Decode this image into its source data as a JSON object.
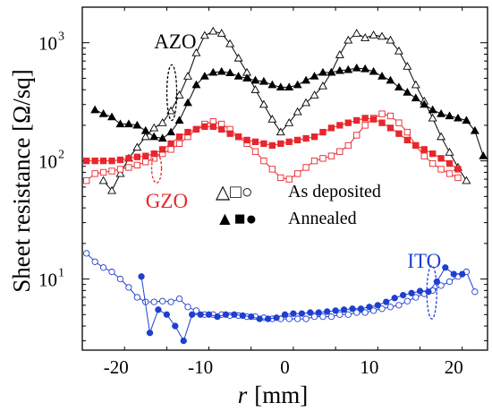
{
  "chart_data": {
    "type": "scatter",
    "xlabel_var": "r",
    "xlabel_unit": "[mm]",
    "ylabel": "Sheet resistance [Ω/sq]",
    "x_ticks": [
      -20,
      -10,
      0,
      10,
      20
    ],
    "x_tick_labels": [
      "-20",
      "-10",
      "0",
      "10",
      "20"
    ],
    "xlim": [
      -24,
      24
    ],
    "yscale": "log",
    "ylim": [
      2.5,
      2000
    ],
    "y_ticks": [
      {
        "value": 10,
        "base": "10",
        "exp": "1"
      },
      {
        "value": 100,
        "base": "10",
        "exp": "2"
      },
      {
        "value": 1000,
        "base": "10",
        "exp": "3"
      }
    ],
    "grid": false,
    "legend": {
      "as_deposited_symbols": "△□○",
      "as_deposited_label": "As deposited",
      "annealed_symbols": "▲■●",
      "annealed_label": "Annealed"
    },
    "annotations": {
      "azo": {
        "text": "AZO",
        "color": "#000000",
        "x": -15.5,
        "y": 900
      },
      "gzo": {
        "text": "GZO",
        "color": "#e8262d",
        "x": -16.5,
        "y": 40
      },
      "ito": {
        "text": "ITO",
        "color": "#1f3fd0",
        "x": 14.5,
        "y": 12.5
      }
    },
    "ellipses": [
      {
        "color": "#000000",
        "cx": -13.4,
        "y_top": 650,
        "y_bot": 220
      },
      {
        "color": "#e8262d",
        "cx": -15.2,
        "y_top": 115,
        "y_bot": 65
      },
      {
        "color": "#1f3fd0",
        "cx": 17.4,
        "y_top": 13,
        "y_bot": 4.6
      }
    ],
    "series": [
      {
        "group": "AZO",
        "state": "as deposited",
        "marker": "triangle",
        "filled": false,
        "color": "#000000",
        "x": [
          -21.5,
          -20.5,
          -19.5,
          -18.5,
          -17.5,
          -16.5,
          -15.5,
          -14.5,
          -13.5,
          -12.5,
          -11.5,
          -10.5,
          -9.5,
          -8.5,
          -7.5,
          -6.5,
          -5.5,
          -4.5,
          -3.5,
          -2.5,
          -1.5,
          -0.5,
          0.5,
          1.5,
          2.5,
          3.5,
          4.5,
          5.5,
          6.5,
          7.5,
          8.5,
          9.5,
          10.5,
          11.5,
          12.5,
          13.5,
          14.5,
          15.5,
          16.5,
          17.5,
          18.5,
          19.5,
          20.5,
          21.5
        ],
        "y": [
          68,
          56,
          78,
          105,
          130,
          160,
          190,
          210,
          265,
          360,
          520,
          820,
          1150,
          1250,
          1200,
          980,
          740,
          560,
          400,
          300,
          225,
          175,
          210,
          260,
          310,
          360,
          430,
          560,
          790,
          1050,
          1200,
          1100,
          1160,
          1130,
          1050,
          850,
          630,
          440,
          320,
          230,
          160,
          118,
          88,
          68
        ]
      },
      {
        "group": "AZO",
        "state": "annealed",
        "marker": "triangle",
        "filled": true,
        "color": "#000000",
        "x": [
          -22.5,
          -21.5,
          -20.5,
          -19.5,
          -18.5,
          -17.5,
          -16.5,
          -15.5,
          -14.5,
          -13.5,
          -12.5,
          -11.5,
          -10.5,
          -9.5,
          -8.5,
          -7.5,
          -6.5,
          -5.5,
          -4.5,
          -3.5,
          -2.5,
          -1.5,
          -0.5,
          0.5,
          1.5,
          2.5,
          3.5,
          4.5,
          5.5,
          6.5,
          7.5,
          8.5,
          9.5,
          10.5,
          11.5,
          12.5,
          13.5,
          14.5,
          15.5,
          16.5,
          17.5,
          18.5,
          19.5,
          20.5,
          21.5,
          22.5,
          23.5
        ],
        "y": [
          270,
          250,
          235,
          205,
          205,
          200,
          180,
          160,
          155,
          175,
          220,
          310,
          440,
          520,
          560,
          570,
          555,
          520,
          500,
          480,
          470,
          440,
          420,
          420,
          440,
          480,
          520,
          560,
          560,
          580,
          590,
          610,
          600,
          570,
          520,
          480,
          420,
          380,
          340,
          300,
          270,
          250,
          240,
          230,
          220,
          180,
          110
        ]
      },
      {
        "group": "GZO",
        "state": "as deposited",
        "marker": "square",
        "filled": false,
        "color": "#e8262d",
        "x": [
          -23.5,
          -22.5,
          -21.5,
          -20.5,
          -19.5,
          -18.5,
          -17.5,
          -16.5,
          -15.5,
          -14.5,
          -13.5,
          -12.5,
          -11.5,
          -10.5,
          -9.5,
          -8.5,
          -7.5,
          -6.5,
          -5.5,
          -4.5,
          -3.5,
          -2.5,
          -1.5,
          -0.5,
          0.5,
          1.5,
          2.5,
          3.5,
          4.5,
          5.5,
          6.5,
          7.5,
          8.5,
          9.5,
          10.5,
          11.5,
          12.5,
          13.5,
          14.5,
          15.5,
          16.5,
          17.5,
          18.5,
          19.5,
          20.5
        ],
        "y": [
          68,
          78,
          80,
          82,
          85,
          88,
          92,
          98,
          105,
          115,
          125,
          140,
          160,
          185,
          205,
          215,
          205,
          185,
          160,
          140,
          120,
          100,
          85,
          72,
          70,
          78,
          88,
          100,
          105,
          110,
          120,
          135,
          165,
          200,
          230,
          250,
          240,
          210,
          175,
          135,
          110,
          95,
          85,
          78,
          72
        ]
      },
      {
        "group": "GZO",
        "state": "annealed",
        "marker": "square",
        "filled": true,
        "color": "#e8262d",
        "x": [
          -23.5,
          -22.5,
          -21.5,
          -20.5,
          -19.5,
          -18.5,
          -17.5,
          -16.5,
          -15.5,
          -14.5,
          -13.5,
          -12.5,
          -11.5,
          -10.5,
          -9.5,
          -8.5,
          -7.5,
          -6.5,
          -5.5,
          -4.5,
          -3.5,
          -2.5,
          -1.5,
          -0.5,
          0.5,
          1.5,
          2.5,
          3.5,
          4.5,
          5.5,
          6.5,
          7.5,
          8.5,
          9.5,
          10.5,
          11.5,
          12.5,
          13.5,
          14.5,
          15.5,
          16.5,
          17.5,
          18.5,
          19.5,
          20.5
        ],
        "y": [
          100,
          100,
          100,
          100,
          102,
          105,
          108,
          110,
          115,
          125,
          140,
          160,
          175,
          185,
          195,
          195,
          185,
          170,
          160,
          150,
          145,
          140,
          135,
          140,
          145,
          150,
          155,
          160,
          175,
          190,
          200,
          210,
          220,
          230,
          225,
          210,
          190,
          170,
          150,
          135,
          125,
          115,
          105,
          95,
          85
        ]
      },
      {
        "group": "ITO",
        "state": "as deposited",
        "marker": "circle",
        "filled": false,
        "color": "#1f3fd0",
        "x": [
          -23.5,
          -22.5,
          -21.5,
          -20.5,
          -19.5,
          -18.5,
          -17.5,
          -16.5,
          -15.5,
          -14.5,
          -13.5,
          -12.5,
          -11.5,
          -10.5,
          -9.5,
          -8.5,
          -7.5,
          -6.5,
          -5.5,
          -4.5,
          -3.5,
          -2.5,
          -1.5,
          -0.5,
          0.5,
          1.5,
          2.5,
          3.5,
          4.5,
          5.5,
          6.5,
          7.5,
          8.5,
          9.5,
          10.5,
          11.5,
          12.5,
          13.5,
          14.5,
          15.5,
          16.5,
          17.5,
          18.5,
          19.5,
          20.5,
          21.5,
          22.5
        ],
        "y": [
          16.5,
          14,
          12.5,
          11.5,
          10,
          8.5,
          7.0,
          6.4,
          6.4,
          6.5,
          6.4,
          6.8,
          5.8,
          5.4,
          5.0,
          5.0,
          5.0,
          4.9,
          4.9,
          4.8,
          4.8,
          4.7,
          4.6,
          4.6,
          4.6,
          4.6,
          4.6,
          4.8,
          4.8,
          4.8,
          5.0,
          5.0,
          5.2,
          5.2,
          5.4,
          5.6,
          5.8,
          6.0,
          6.5,
          7.0,
          7.5,
          8.0,
          8.8,
          9.5,
          10.5,
          11.5,
          7.8
        ]
      },
      {
        "group": "ITO",
        "state": "annealed",
        "marker": "circle",
        "filled": true,
        "color": "#1f3fd0",
        "x": [
          -17.0,
          -16.0,
          -15.0,
          -14.0,
          -13.0,
          -12.0,
          -11.0,
          -10.0,
          -9.0,
          -8.0,
          -7.0,
          -6.0,
          -5.0,
          -4.0,
          -3.0,
          -2.0,
          -1.0,
          0.0,
          1.0,
          2.0,
          3.0,
          4.0,
          5.0,
          6.0,
          7.0,
          8.0,
          9.0,
          10.0,
          11.0,
          12.0,
          13.0,
          14.0,
          15.0,
          16.0,
          17.0,
          18.0,
          19.0,
          20.0,
          21.0
        ],
        "y": [
          10.5,
          3.5,
          5.5,
          5.0,
          4.0,
          3.0,
          5.0,
          5.0,
          5.0,
          4.8,
          5.0,
          5.0,
          4.9,
          4.8,
          4.6,
          4.6,
          4.7,
          5.0,
          5.1,
          5.1,
          5.2,
          5.2,
          5.3,
          5.4,
          5.5,
          5.6,
          5.6,
          5.8,
          6.0,
          6.4,
          6.9,
          7.3,
          7.6,
          7.9,
          7.8,
          9.5,
          12.5,
          11.0,
          11.0
        ]
      }
    ]
  }
}
